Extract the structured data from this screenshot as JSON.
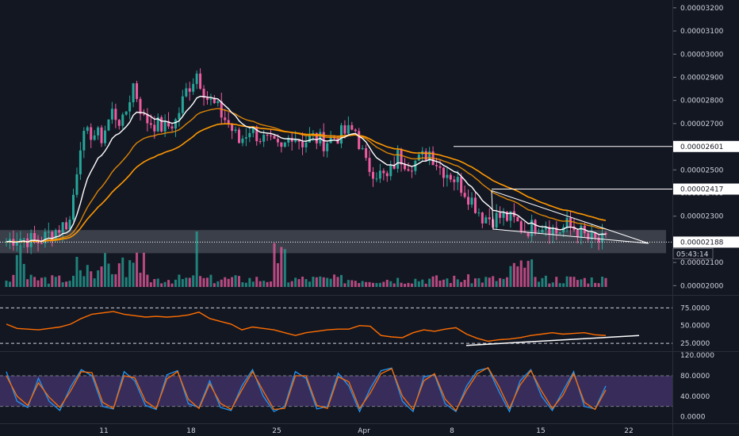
{
  "chart_data": [
    {
      "type": "candlestick",
      "title": "",
      "price_axis": {
        "ticks": [
          "0.00003200",
          "0.00003100",
          "0.00003000",
          "0.00002900",
          "0.00002800",
          "0.00002700",
          "0.00002600",
          "0.00002500",
          "0.00002400",
          "0.00002300",
          "0.00002200",
          "0.00002100",
          "0.00002000"
        ],
        "ylim": [
          1.96e-05,
          3.22e-05
        ]
      },
      "time_axis": {
        "ticks": [
          "11",
          "18",
          "25",
          "Apr",
          "8",
          "15",
          "22"
        ]
      },
      "current_price": "0.00002188",
      "countdown": "05:43:14",
      "marked_levels": [
        "0.00002601",
        "0.00002417"
      ],
      "support_zone": [
        2.14e-05,
        2.24e-05
      ],
      "series": [
        {
          "name": "price",
          "values": [
            2.19e-05,
            2.21e-05,
            2.2e-05,
            2.19e-05,
            2.22e-05,
            2.25e-05,
            2.28e-05,
            2.62e-05,
            2.66e-05,
            2.64e-05,
            2.75e-05,
            2.7e-05,
            2.87e-05,
            2.72e-05,
            2.7e-05,
            2.68e-05,
            2.71e-05,
            2.84e-05,
            2.92e-05,
            2.81e-05,
            2.76e-05,
            2.7e-05,
            2.62e-05,
            2.68e-05,
            2.64e-05,
            2.61e-05,
            2.58e-05,
            2.66e-05,
            2.62e-05,
            2.64e-05,
            2.62e-05,
            2.64e-05,
            2.66e-05,
            2.67e-05,
            2.52e-05,
            2.49e-05,
            2.46e-05,
            2.56e-05,
            2.53e-05,
            2.54e-05,
            2.58e-05,
            2.51e-05,
            2.48e-05,
            2.43e-05,
            2.37e-05,
            2.3e-05,
            2.29e-05,
            2.3e-05,
            2.28e-05,
            2.24e-05,
            2.26e-05,
            2.27e-05,
            2.23e-05,
            2.26e-05,
            2.24e-05,
            2.2e-05,
            2.19e-05
          ]
        }
      ]
    },
    {
      "type": "line",
      "title": "",
      "y_ticks": [
        "75.0000",
        "50.0000",
        "25.0000"
      ],
      "ylim": [
        15,
        90
      ],
      "series": [
        {
          "name": "",
          "values": [
            52,
            46,
            45,
            44,
            46,
            48,
            52,
            60,
            66,
            68,
            70,
            66,
            64,
            62,
            63,
            62,
            63,
            65,
            69,
            60,
            56,
            52,
            44,
            48,
            46,
            44,
            40,
            36,
            40,
            42,
            44,
            45,
            45,
            50,
            49,
            36,
            34,
            33,
            40,
            44,
            42,
            45,
            47,
            38,
            32,
            28,
            30,
            31,
            33,
            36,
            38,
            40,
            38,
            39,
            40,
            37,
            36
          ]
        }
      ]
    },
    {
      "type": "line",
      "title": "",
      "y_ticks": [
        "120.0000",
        "80.0000",
        "40.0000",
        "0.0000"
      ],
      "ylim": [
        -10,
        125
      ],
      "series": [
        {
          "name": "",
          "values": [
            88,
            30,
            18,
            75,
            30,
            12,
            58,
            92,
            80,
            20,
            15,
            88,
            70,
            22,
            14,
            82,
            90,
            25,
            18,
            70,
            18,
            12,
            60,
            92,
            40,
            10,
            20,
            88,
            75,
            15,
            20,
            85,
            60,
            10,
            55,
            90,
            95,
            30,
            10,
            78,
            82,
            25,
            10,
            60,
            90,
            95,
            50,
            10,
            70,
            92,
            40,
            12,
            50,
            88,
            20,
            15,
            60
          ]
        },
        {
          "name": "",
          "values": [
            80,
            40,
            22,
            66,
            38,
            18,
            50,
            88,
            86,
            28,
            16,
            80,
            76,
            30,
            16,
            74,
            88,
            34,
            16,
            64,
            26,
            14,
            52,
            88,
            50,
            14,
            16,
            80,
            80,
            22,
            16,
            78,
            68,
            16,
            46,
            84,
            94,
            40,
            14,
            70,
            84,
            34,
            12,
            52,
            84,
            96,
            60,
            16,
            62,
            90,
            50,
            16,
            42,
            84,
            28,
            14,
            52
          ]
        }
      ]
    }
  ]
}
